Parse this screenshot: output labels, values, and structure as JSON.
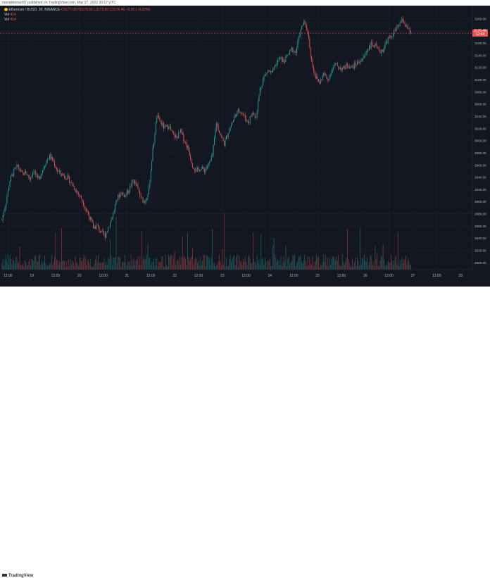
{
  "caption": "mariaklemarr87 published on TradingView.com, Mar 27, 2022 20:17 UTC",
  "legend": {
    "symbol": "Ethereum / BUSD, 30, BINANCE",
    "ohlc": "O3177.09 H3179.60 L3173.60 C3176.46 −0.50 (−0.02%)",
    "vol_label_1": "Vol",
    "vol_value_1": "414",
    "vol_label_2": "Vol",
    "vol_value_2": "414"
  },
  "price_tag": {
    "price": "3176.46",
    "countdown": "12:44"
  },
  "footer": {
    "logo": "TradingView"
  },
  "colors": {
    "background": "#131722",
    "up": "#26a69a",
    "down": "#ef5350",
    "grid": "#1e222d",
    "axis_text": "#b2b5be",
    "pair_icon": "#f0b90b"
  },
  "chart_data": {
    "type": "candlestick",
    "title": "Ethereum / BUSD, 30, BINANCE",
    "ylim": [
      2800,
      3210
    ],
    "y_ticks": [
      2800,
      2820,
      2840,
      2860,
      2880,
      2900,
      2920,
      2940,
      2960,
      2980,
      3000,
      3020,
      3040,
      3060,
      3080,
      3100,
      3120,
      3140,
      3160,
      3180,
      3200
    ],
    "y_tick_labels": [
      "2800.00",
      "2820.00",
      "2840.00",
      "2860.00",
      "2880.00",
      "2900.00",
      "2920.00",
      "2940.00",
      "2960.00",
      "2980.00",
      "3000.00",
      "3020.00",
      "3040.00",
      "3060.00",
      "3080.00",
      "3100.00",
      "3120.00",
      "3140.00",
      "3160.00",
      "3180.00",
      "3200.00"
    ],
    "x_ticks": [
      {
        "label": "12:00",
        "hour": 12
      },
      {
        "label": "19",
        "hour": 24
      },
      {
        "label": "12:00",
        "hour": 36
      },
      {
        "label": "20",
        "hour": 48
      },
      {
        "label": "12:00",
        "hour": 60
      },
      {
        "label": "21",
        "hour": 72
      },
      {
        "label": "12:00",
        "hour": 84
      },
      {
        "label": "22",
        "hour": 96
      },
      {
        "label": "12:00",
        "hour": 108
      },
      {
        "label": "23",
        "hour": 120
      },
      {
        "label": "12:00",
        "hour": 132
      },
      {
        "label": "24",
        "hour": 144
      },
      {
        "label": "12:00",
        "hour": 156
      },
      {
        "label": "25",
        "hour": 168
      },
      {
        "label": "12:00",
        "hour": 180
      },
      {
        "label": "26",
        "hour": 192
      },
      {
        "label": "12:00",
        "hour": 204
      },
      {
        "label": "27",
        "hour": 216
      },
      {
        "label": "12:00",
        "hour": 228
      },
      {
        "label": "28",
        "hour": 240
      }
    ],
    "x_range_hours": [
      8,
      246
    ],
    "last_price": 3176.46,
    "close_path": [
      {
        "h": 9,
        "p": 2870
      },
      {
        "h": 11,
        "p": 2900
      },
      {
        "h": 13,
        "p": 2935
      },
      {
        "h": 15,
        "p": 2950
      },
      {
        "h": 17,
        "p": 2958
      },
      {
        "h": 19,
        "p": 2945
      },
      {
        "h": 21,
        "p": 2948
      },
      {
        "h": 23,
        "p": 2938
      },
      {
        "h": 25,
        "p": 2952
      },
      {
        "h": 27,
        "p": 2935
      },
      {
        "h": 29,
        "p": 2948
      },
      {
        "h": 31,
        "p": 2965
      },
      {
        "h": 33,
        "p": 2975
      },
      {
        "h": 35,
        "p": 2965
      },
      {
        "h": 37,
        "p": 2950
      },
      {
        "h": 39,
        "p": 2945
      },
      {
        "h": 41,
        "p": 2942
      },
      {
        "h": 43,
        "p": 2935
      },
      {
        "h": 45,
        "p": 2925
      },
      {
        "h": 47,
        "p": 2915
      },
      {
        "h": 49,
        "p": 2905
      },
      {
        "h": 51,
        "p": 2890
      },
      {
        "h": 53,
        "p": 2875
      },
      {
        "h": 55,
        "p": 2858
      },
      {
        "h": 57,
        "p": 2860
      },
      {
        "h": 59,
        "p": 2848
      },
      {
        "h": 61,
        "p": 2845
      },
      {
        "h": 63,
        "p": 2862
      },
      {
        "h": 65,
        "p": 2880
      },
      {
        "h": 67,
        "p": 2905
      },
      {
        "h": 69,
        "p": 2915
      },
      {
        "h": 71,
        "p": 2910
      },
      {
        "h": 73,
        "p": 2920
      },
      {
        "h": 75,
        "p": 2935
      },
      {
        "h": 77,
        "p": 2925
      },
      {
        "h": 79,
        "p": 2905
      },
      {
        "h": 81,
        "p": 2900
      },
      {
        "h": 83,
        "p": 2920
      },
      {
        "h": 85,
        "p": 2985
      },
      {
        "h": 87,
        "p": 3040
      },
      {
        "h": 89,
        "p": 3030
      },
      {
        "h": 91,
        "p": 3020
      },
      {
        "h": 93,
        "p": 3025
      },
      {
        "h": 95,
        "p": 3010
      },
      {
        "h": 97,
        "p": 3005
      },
      {
        "h": 99,
        "p": 3015
      },
      {
        "h": 101,
        "p": 3000
      },
      {
        "h": 103,
        "p": 2985
      },
      {
        "h": 105,
        "p": 2960
      },
      {
        "h": 107,
        "p": 2950
      },
      {
        "h": 109,
        "p": 2955
      },
      {
        "h": 111,
        "p": 2952
      },
      {
        "h": 113,
        "p": 2960
      },
      {
        "h": 115,
        "p": 2975
      },
      {
        "h": 117,
        "p": 3030
      },
      {
        "h": 119,
        "p": 3010
      },
      {
        "h": 121,
        "p": 2995
      },
      {
        "h": 123,
        "p": 3015
      },
      {
        "h": 125,
        "p": 3030
      },
      {
        "h": 127,
        "p": 3045
      },
      {
        "h": 129,
        "p": 3050
      },
      {
        "h": 131,
        "p": 3040
      },
      {
        "h": 133,
        "p": 3030
      },
      {
        "h": 135,
        "p": 3045
      },
      {
        "h": 137,
        "p": 3040
      },
      {
        "h": 139,
        "p": 3085
      },
      {
        "h": 141,
        "p": 3105
      },
      {
        "h": 143,
        "p": 3115
      },
      {
        "h": 145,
        "p": 3110
      },
      {
        "h": 147,
        "p": 3125
      },
      {
        "h": 149,
        "p": 3135
      },
      {
        "h": 151,
        "p": 3130
      },
      {
        "h": 153,
        "p": 3140
      },
      {
        "h": 155,
        "p": 3150
      },
      {
        "h": 157,
        "p": 3145
      },
      {
        "h": 159,
        "p": 3175
      },
      {
        "h": 161,
        "p": 3195
      },
      {
        "h": 163,
        "p": 3180
      },
      {
        "h": 165,
        "p": 3130
      },
      {
        "h": 167,
        "p": 3105
      },
      {
        "h": 169,
        "p": 3095
      },
      {
        "h": 171,
        "p": 3110
      },
      {
        "h": 173,
        "p": 3100
      },
      {
        "h": 175,
        "p": 3115
      },
      {
        "h": 177,
        "p": 3125
      },
      {
        "h": 179,
        "p": 3120
      },
      {
        "h": 181,
        "p": 3118
      },
      {
        "h": 183,
        "p": 3125
      },
      {
        "h": 185,
        "p": 3120
      },
      {
        "h": 187,
        "p": 3125
      },
      {
        "h": 189,
        "p": 3130
      },
      {
        "h": 191,
        "p": 3135
      },
      {
        "h": 193,
        "p": 3150
      },
      {
        "h": 195,
        "p": 3158
      },
      {
        "h": 197,
        "p": 3155
      },
      {
        "h": 199,
        "p": 3145
      },
      {
        "h": 201,
        "p": 3150
      },
      {
        "h": 203,
        "p": 3165
      },
      {
        "h": 205,
        "p": 3170
      },
      {
        "h": 207,
        "p": 3180
      },
      {
        "h": 209,
        "p": 3190
      },
      {
        "h": 211,
        "p": 3198
      },
      {
        "h": 213,
        "p": 3185
      },
      {
        "h": 215,
        "p": 3176
      }
    ]
  }
}
